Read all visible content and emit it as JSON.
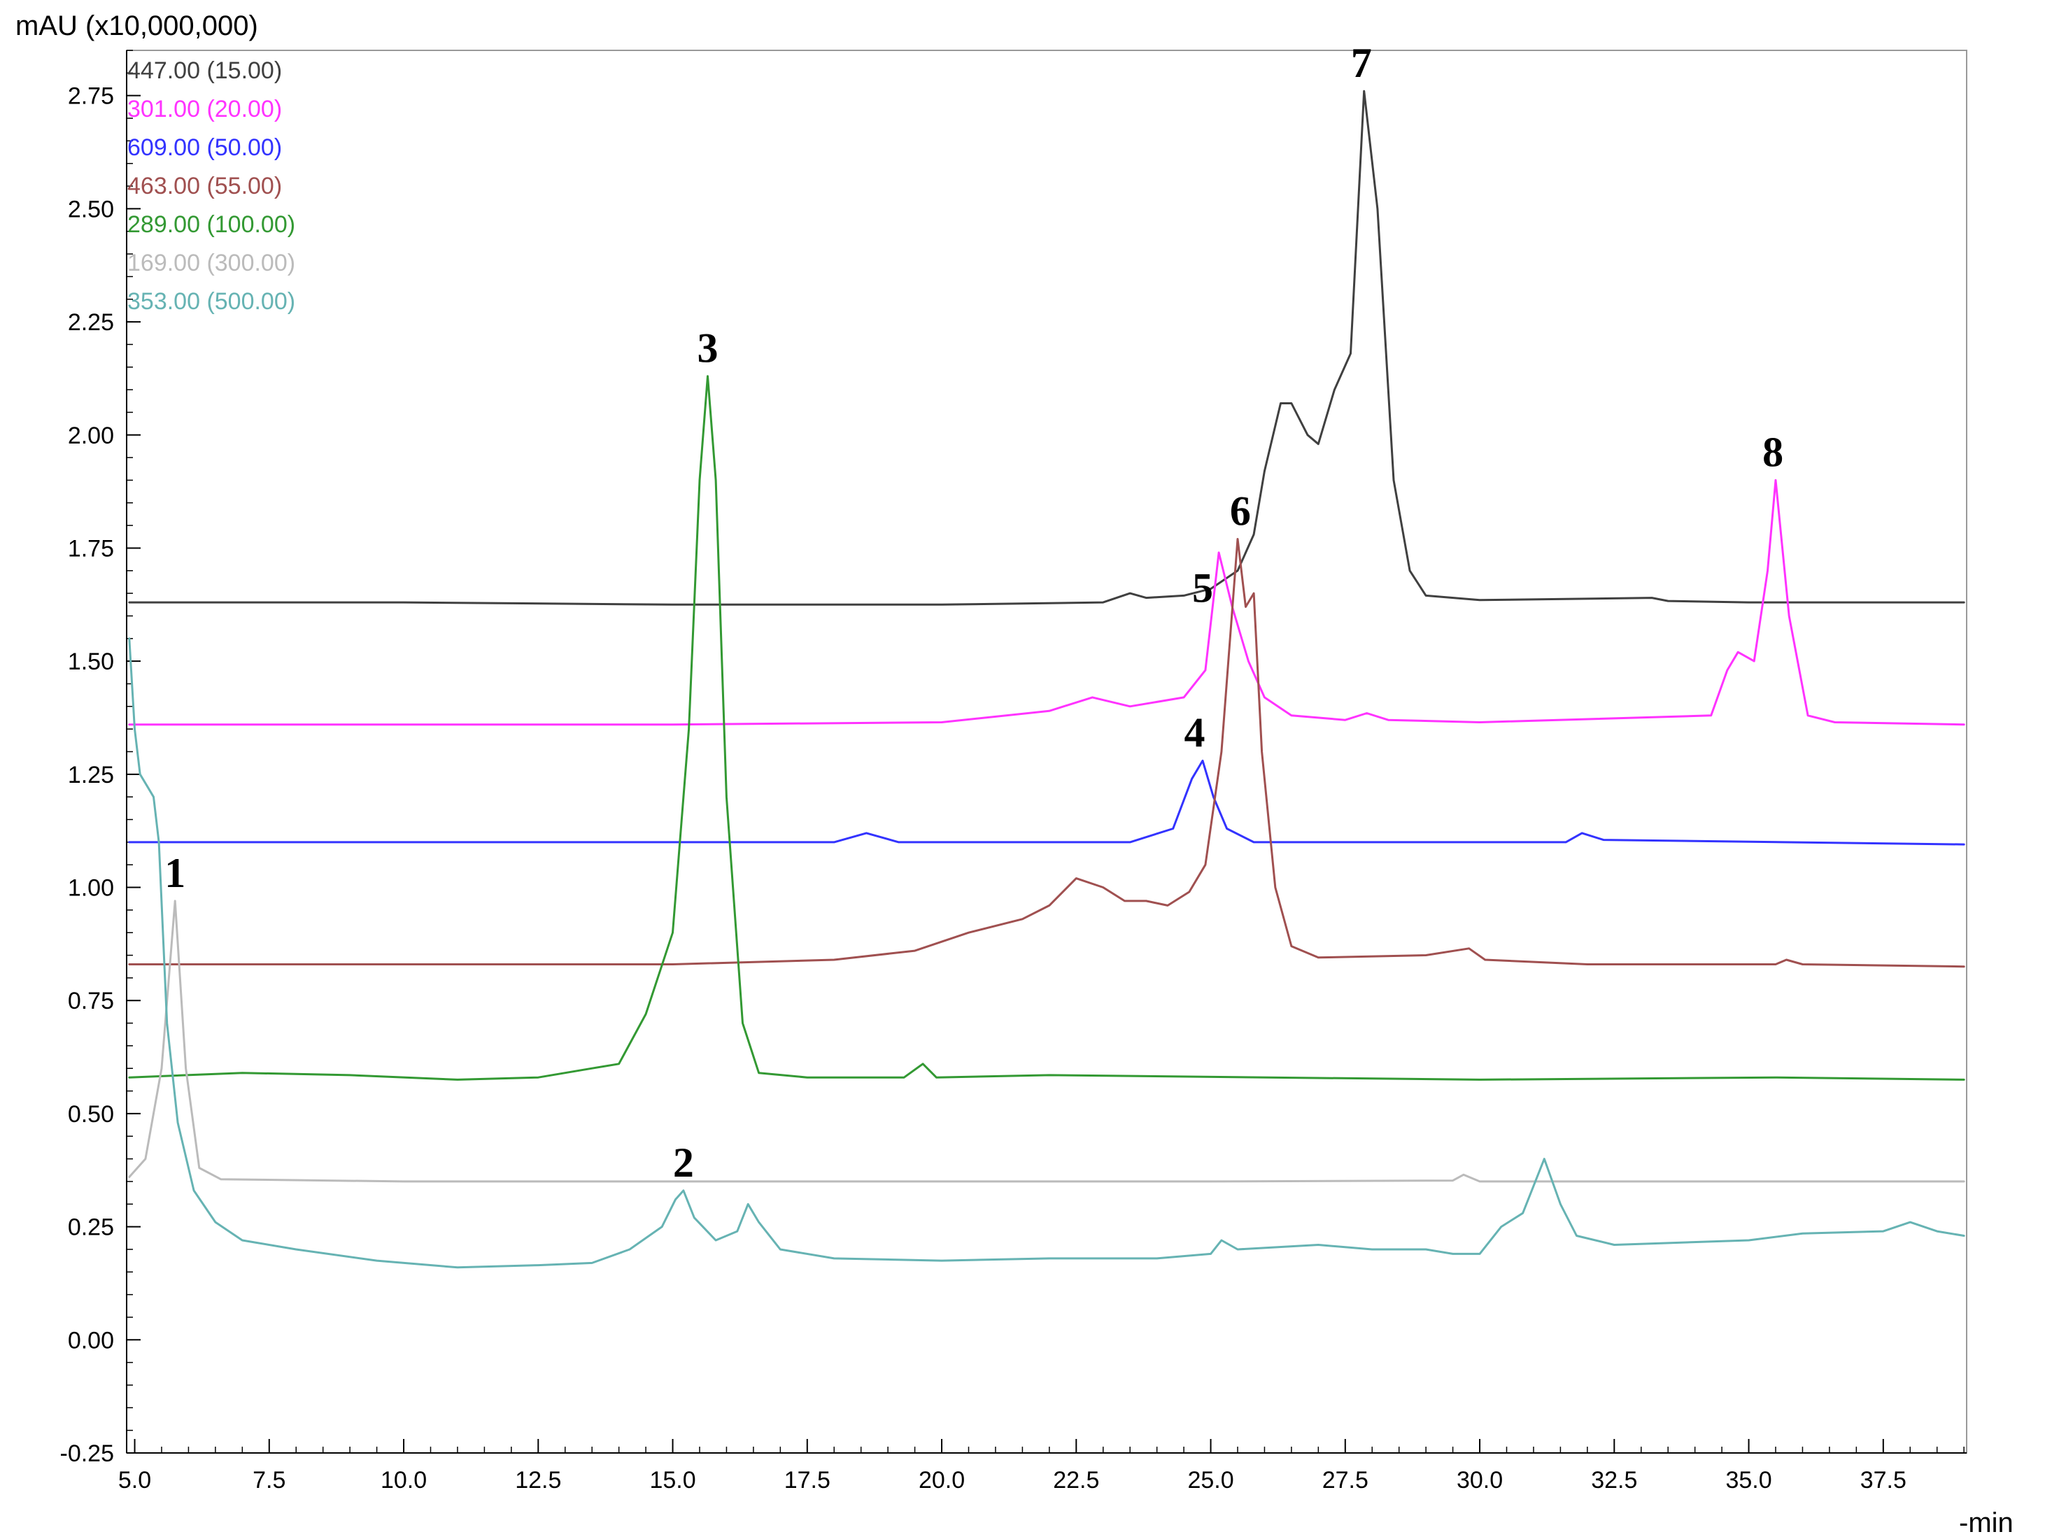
{
  "chart_data": {
    "type": "line",
    "ylabel": "mAU (x10,000,000)",
    "xlabel": "-min",
    "xlim": [
      4.85,
      39.05
    ],
    "ylim": [
      -0.25,
      2.85
    ],
    "x_ticks": [
      "5.0",
      "7.5",
      "10.0",
      "12.5",
      "15.0",
      "17.5",
      "20.0",
      "22.5",
      "25.0",
      "27.5",
      "30.0",
      "32.5",
      "35.0",
      "37.5"
    ],
    "x_tick_values": [
      5.0,
      7.5,
      10.0,
      12.5,
      15.0,
      17.5,
      20.0,
      22.5,
      25.0,
      27.5,
      30.0,
      32.5,
      35.0,
      37.5
    ],
    "y_ticks": [
      "-0.25",
      "0.00",
      "0.25",
      "0.50",
      "0.75",
      "1.00",
      "1.25",
      "1.50",
      "1.75",
      "2.00",
      "2.25",
      "2.50",
      "2.75"
    ],
    "y_tick_values": [
      -0.25,
      0.0,
      0.25,
      0.5,
      0.75,
      1.0,
      1.25,
      1.5,
      1.75,
      2.0,
      2.25,
      2.5,
      2.75
    ],
    "grid": false,
    "legend_position": "top-left",
    "series": [
      {
        "name": "447.00 (15.00)",
        "color": "#404040",
        "points": [
          [
            4.9,
            1.63
          ],
          [
            10,
            1.63
          ],
          [
            15,
            1.625
          ],
          [
            20,
            1.625
          ],
          [
            23.0,
            1.63
          ],
          [
            23.5,
            1.65
          ],
          [
            23.8,
            1.64
          ],
          [
            24.5,
            1.645
          ],
          [
            25.0,
            1.66
          ],
          [
            25.5,
            1.7
          ],
          [
            25.8,
            1.78
          ],
          [
            26.0,
            1.92
          ],
          [
            26.3,
            2.07
          ],
          [
            26.5,
            2.07
          ],
          [
            26.8,
            2.0
          ],
          [
            27.0,
            1.98
          ],
          [
            27.3,
            2.1
          ],
          [
            27.6,
            2.18
          ],
          [
            27.85,
            2.76
          ],
          [
            28.1,
            2.5
          ],
          [
            28.4,
            1.9
          ],
          [
            28.7,
            1.7
          ],
          [
            29.0,
            1.645
          ],
          [
            30,
            1.635
          ],
          [
            33.2,
            1.64
          ],
          [
            33.5,
            1.633
          ],
          [
            35,
            1.63
          ],
          [
            39.0,
            1.63
          ]
        ]
      },
      {
        "name": "301.00 (20.00)",
        "color": "#ff33ff",
        "points": [
          [
            4.9,
            1.36
          ],
          [
            10,
            1.36
          ],
          [
            15,
            1.36
          ],
          [
            20,
            1.365
          ],
          [
            22.0,
            1.39
          ],
          [
            22.8,
            1.42
          ],
          [
            23.5,
            1.4
          ],
          [
            24.5,
            1.42
          ],
          [
            24.9,
            1.48
          ],
          [
            25.15,
            1.74
          ],
          [
            25.4,
            1.62
          ],
          [
            25.7,
            1.5
          ],
          [
            26.0,
            1.42
          ],
          [
            26.5,
            1.38
          ],
          [
            27.5,
            1.37
          ],
          [
            27.9,
            1.385
          ],
          [
            28.3,
            1.37
          ],
          [
            30,
            1.365
          ],
          [
            34.3,
            1.38
          ],
          [
            34.6,
            1.48
          ],
          [
            34.8,
            1.52
          ],
          [
            35.1,
            1.5
          ],
          [
            35.35,
            1.7
          ],
          [
            35.5,
            1.9
          ],
          [
            35.75,
            1.6
          ],
          [
            36.1,
            1.38
          ],
          [
            36.6,
            1.365
          ],
          [
            39.0,
            1.36
          ]
        ]
      },
      {
        "name": "609.00 (50.00)",
        "color": "#3333ff",
        "points": [
          [
            4.9,
            1.1
          ],
          [
            18.0,
            1.1
          ],
          [
            18.6,
            1.12
          ],
          [
            19.2,
            1.1
          ],
          [
            23.5,
            1.1
          ],
          [
            24.3,
            1.13
          ],
          [
            24.65,
            1.24
          ],
          [
            24.85,
            1.28
          ],
          [
            25.05,
            1.2
          ],
          [
            25.3,
            1.13
          ],
          [
            25.8,
            1.1
          ],
          [
            31.6,
            1.1
          ],
          [
            31.9,
            1.12
          ],
          [
            32.3,
            1.105
          ],
          [
            39.0,
            1.095
          ]
        ]
      },
      {
        "name": "463.00 (55.00)",
        "color": "#a05050",
        "points": [
          [
            4.9,
            0.83
          ],
          [
            10,
            0.83
          ],
          [
            15,
            0.83
          ],
          [
            18,
            0.84
          ],
          [
            19.5,
            0.86
          ],
          [
            20.5,
            0.9
          ],
          [
            21.5,
            0.93
          ],
          [
            22.0,
            0.96
          ],
          [
            22.5,
            1.02
          ],
          [
            23.0,
            1.0
          ],
          [
            23.4,
            0.97
          ],
          [
            23.8,
            0.97
          ],
          [
            24.2,
            0.96
          ],
          [
            24.6,
            0.99
          ],
          [
            24.9,
            1.05
          ],
          [
            25.2,
            1.3
          ],
          [
            25.5,
            1.77
          ],
          [
            25.65,
            1.62
          ],
          [
            25.8,
            1.65
          ],
          [
            25.95,
            1.3
          ],
          [
            26.2,
            1.0
          ],
          [
            26.5,
            0.87
          ],
          [
            27.0,
            0.845
          ],
          [
            29,
            0.85
          ],
          [
            29.8,
            0.865
          ],
          [
            30.1,
            0.84
          ],
          [
            32,
            0.83
          ],
          [
            35.5,
            0.83
          ],
          [
            35.7,
            0.84
          ],
          [
            36.0,
            0.83
          ],
          [
            39.0,
            0.825
          ]
        ]
      },
      {
        "name": "289.00 (100.00)",
        "color": "#339933",
        "points": [
          [
            4.9,
            0.58
          ],
          [
            7.0,
            0.59
          ],
          [
            9.0,
            0.585
          ],
          [
            11.0,
            0.575
          ],
          [
            12.5,
            0.58
          ],
          [
            13.5,
            0.6
          ],
          [
            14.0,
            0.61
          ],
          [
            14.5,
            0.72
          ],
          [
            15.0,
            0.9
          ],
          [
            15.3,
            1.35
          ],
          [
            15.5,
            1.9
          ],
          [
            15.65,
            2.13
          ],
          [
            15.8,
            1.9
          ],
          [
            16.0,
            1.2
          ],
          [
            16.3,
            0.7
          ],
          [
            16.6,
            0.59
          ],
          [
            17.5,
            0.58
          ],
          [
            19.3,
            0.58
          ],
          [
            19.65,
            0.61
          ],
          [
            19.9,
            0.58
          ],
          [
            22.0,
            0.585
          ],
          [
            30.0,
            0.575
          ],
          [
            35.5,
            0.58
          ],
          [
            39.0,
            0.575
          ]
        ]
      },
      {
        "name": "169.00 (300.00)",
        "color": "#bbbbbb",
        "points": [
          [
            4.9,
            0.36
          ],
          [
            5.2,
            0.4
          ],
          [
            5.5,
            0.6
          ],
          [
            5.75,
            0.97
          ],
          [
            5.95,
            0.6
          ],
          [
            6.2,
            0.38
          ],
          [
            6.6,
            0.355
          ],
          [
            10,
            0.35
          ],
          [
            15,
            0.35
          ],
          [
            20,
            0.35
          ],
          [
            25,
            0.35
          ],
          [
            29.5,
            0.352
          ],
          [
            29.7,
            0.365
          ],
          [
            30.0,
            0.35
          ],
          [
            35,
            0.35
          ],
          [
            39.0,
            0.35
          ]
        ]
      },
      {
        "name": "353.00 (500.00)",
        "color": "#66b3b3",
        "points": [
          [
            4.9,
            1.55
          ],
          [
            5.0,
            1.35
          ],
          [
            5.1,
            1.25
          ],
          [
            5.25,
            1.22
          ],
          [
            5.35,
            1.2
          ],
          [
            5.45,
            1.1
          ],
          [
            5.6,
            0.7
          ],
          [
            5.8,
            0.48
          ],
          [
            6.1,
            0.33
          ],
          [
            6.5,
            0.26
          ],
          [
            7.0,
            0.22
          ],
          [
            8.0,
            0.2
          ],
          [
            9.5,
            0.175
          ],
          [
            11.0,
            0.16
          ],
          [
            12.5,
            0.165
          ],
          [
            13.5,
            0.17
          ],
          [
            14.2,
            0.2
          ],
          [
            14.8,
            0.25
          ],
          [
            15.05,
            0.31
          ],
          [
            15.2,
            0.33
          ],
          [
            15.4,
            0.27
          ],
          [
            15.8,
            0.22
          ],
          [
            16.2,
            0.24
          ],
          [
            16.4,
            0.3
          ],
          [
            16.6,
            0.26
          ],
          [
            17.0,
            0.2
          ],
          [
            18,
            0.18
          ],
          [
            20,
            0.175
          ],
          [
            22,
            0.18
          ],
          [
            24,
            0.18
          ],
          [
            25,
            0.19
          ],
          [
            25.2,
            0.22
          ],
          [
            25.5,
            0.2
          ],
          [
            27,
            0.21
          ],
          [
            28,
            0.2
          ],
          [
            29.0,
            0.2
          ],
          [
            29.5,
            0.19
          ],
          [
            30.0,
            0.19
          ],
          [
            30.4,
            0.25
          ],
          [
            30.8,
            0.28
          ],
          [
            31.2,
            0.4
          ],
          [
            31.5,
            0.3
          ],
          [
            31.8,
            0.23
          ],
          [
            32.5,
            0.21
          ],
          [
            35,
            0.22
          ],
          [
            36,
            0.235
          ],
          [
            37.5,
            0.24
          ],
          [
            38.0,
            0.26
          ],
          [
            38.5,
            0.24
          ],
          [
            39.0,
            0.23
          ]
        ]
      }
    ],
    "annotations": [
      {
        "text": "1",
        "x": 5.75,
        "y": 0.97
      },
      {
        "text": "2",
        "x": 15.2,
        "y": 0.33
      },
      {
        "text": "3",
        "x": 15.65,
        "y": 2.13
      },
      {
        "text": "4",
        "x": 24.7,
        "y": 1.28
      },
      {
        "text": "5",
        "x": 24.85,
        "y": 1.6
      },
      {
        "text": "6",
        "x": 25.55,
        "y": 1.77
      },
      {
        "text": "7",
        "x": 27.8,
        "y": 2.76
      },
      {
        "text": "8",
        "x": 35.45,
        "y": 1.9
      }
    ]
  }
}
